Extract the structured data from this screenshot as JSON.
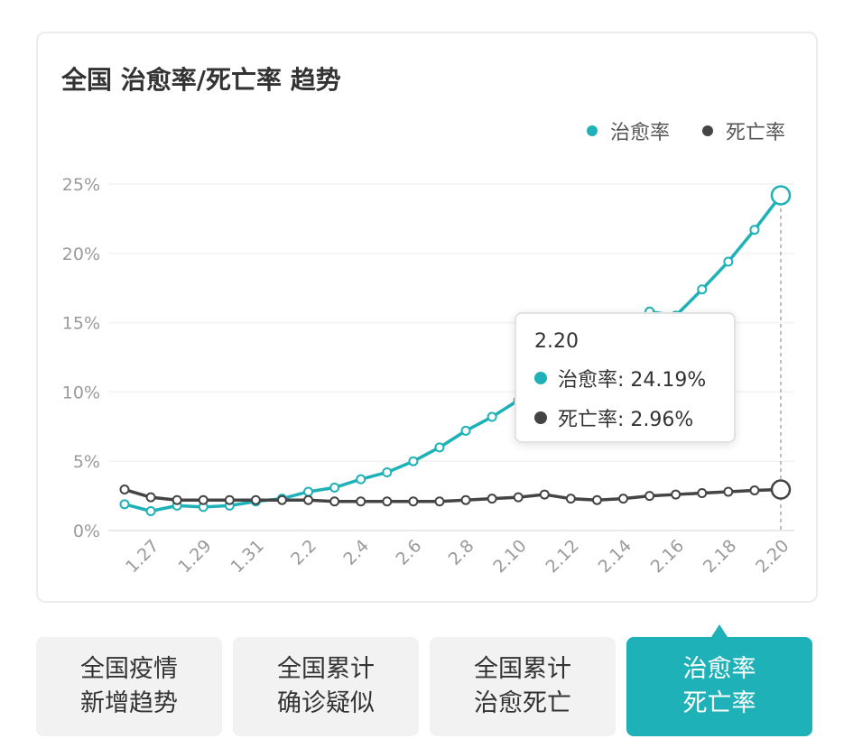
{
  "chart_title": "全国 治愈率/死亡率 趋势",
  "legend": [
    {
      "label": "治愈率",
      "color": "#1eb2b8"
    },
    {
      "label": "死亡率",
      "color": "#444444"
    }
  ],
  "tooltip": {
    "date": "2.20",
    "rows": [
      {
        "label": "治愈率: 24.19%",
        "color": "#1eb2b8"
      },
      {
        "label": "死亡率: 2.96%",
        "color": "#444444"
      }
    ]
  },
  "tabs": [
    {
      "line1": "全国疫情",
      "line2": "新增趋势",
      "active": false
    },
    {
      "line1": "全国累计",
      "line2": "确诊疑似",
      "active": false
    },
    {
      "line1": "全国累计",
      "line2": "治愈死亡",
      "active": false
    },
    {
      "line1": "治愈率",
      "line2": "死亡率",
      "active": true
    }
  ],
  "chart_data": {
    "type": "line",
    "title": "全国 治愈率/死亡率 趋势",
    "xlabel": "",
    "ylabel": "",
    "ylim": [
      0,
      25
    ],
    "yticks": [
      "0%",
      "5%",
      "10%",
      "15%",
      "20%",
      "25%"
    ],
    "x": [
      "1.26",
      "1.27",
      "1.28",
      "1.29",
      "1.30",
      "1.31",
      "2.1",
      "2.2",
      "2.3",
      "2.4",
      "2.5",
      "2.6",
      "2.7",
      "2.8",
      "2.9",
      "2.10",
      "2.11",
      "2.12",
      "2.13",
      "2.14",
      "2.15",
      "2.16",
      "2.17",
      "2.18",
      "2.19",
      "2.20"
    ],
    "xtick_labels": [
      "1.27",
      "1.29",
      "1.31",
      "2.2",
      "2.4",
      "2.6",
      "2.8",
      "2.10",
      "2.12",
      "2.14",
      "2.16",
      "2.18",
      "2.20"
    ],
    "grid": true,
    "legend_position": "top-right",
    "series": [
      {
        "name": "治愈率",
        "color": "#1eb2b8",
        "values": [
          1.9,
          1.4,
          1.8,
          1.7,
          1.8,
          2.1,
          2.3,
          2.8,
          3.1,
          3.7,
          4.2,
          5.0,
          6.0,
          7.2,
          8.2,
          9.4,
          10.6,
          11.9,
          13.2,
          14.5,
          15.8,
          15.5,
          17.4,
          19.4,
          21.7,
          24.19
        ]
      },
      {
        "name": "死亡率",
        "color": "#444444",
        "values": [
          2.96,
          2.4,
          2.2,
          2.2,
          2.2,
          2.2,
          2.2,
          2.2,
          2.1,
          2.1,
          2.1,
          2.1,
          2.1,
          2.2,
          2.3,
          2.4,
          2.6,
          2.3,
          2.2,
          2.3,
          2.5,
          2.6,
          2.7,
          2.8,
          2.9,
          2.96
        ]
      }
    ],
    "highlight_index": 25
  }
}
